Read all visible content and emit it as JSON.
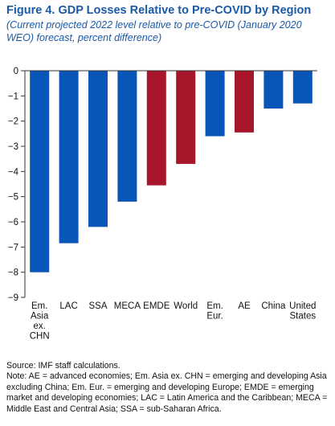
{
  "figure": {
    "title": "Figure 4.  GDP Losses Relative to Pre-COVID by Region",
    "subtitle": "(Current projected 2022 level relative to pre-COVID (January 2020 WEO) forecast, percent difference)"
  },
  "chart_data": {
    "type": "bar",
    "categories": [
      "Em. Asia ex. CHN",
      "LAC",
      "SSA",
      "MECA",
      "EMDE",
      "World",
      "Em. Eur.",
      "AE",
      "China",
      "United States"
    ],
    "category_lines": [
      [
        "Em.",
        "Asia",
        "ex.",
        "CHN"
      ],
      [
        "LAC"
      ],
      [
        "SSA"
      ],
      [
        "MECA"
      ],
      [
        "EMDE"
      ],
      [
        "World"
      ],
      [
        "Em.",
        "Eur."
      ],
      [
        "AE"
      ],
      [
        "China"
      ],
      [
        "United",
        "States"
      ]
    ],
    "values": [
      -8.0,
      -6.85,
      -6.2,
      -5.2,
      -4.55,
      -3.7,
      -2.6,
      -2.45,
      -1.5,
      -1.3
    ],
    "bar_colors": [
      "#0a55b8",
      "#0a55b8",
      "#0a55b8",
      "#0a55b8",
      "#a8162c",
      "#a8162c",
      "#0a55b8",
      "#a8162c",
      "#0a55b8",
      "#0a55b8"
    ],
    "yticks": [
      0,
      -1,
      -2,
      -3,
      -4,
      -5,
      -6,
      -7,
      -8,
      -9
    ],
    "ylim": [
      -9,
      0
    ],
    "xlabel": "",
    "ylabel": "",
    "grid": false,
    "legend": "none"
  },
  "notes": {
    "source": "Source: IMF staff calculations.",
    "note": "Note: AE = advanced economies; Em. Asia ex. CHN = emerging and developing Asia excluding China; Em. Eur. = emerging and developing Europe; EMDE = emerging market and developing economies; LAC = Latin America and the Caribbean; MECA = Middle East and Central Asia; SSA = sub-Saharan Africa."
  }
}
